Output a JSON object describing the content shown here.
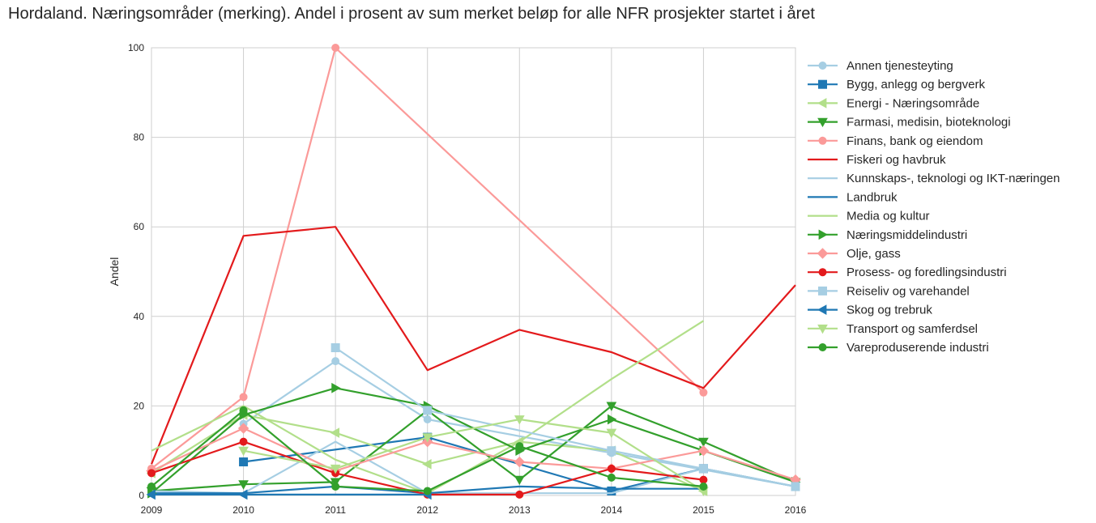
{
  "chart_data": {
    "type": "line",
    "title": "Hordaland. Næringsområder (merking). Andel i prosent av sum merket beløp for alle NFR prosjekter startet i året",
    "xlabel": "",
    "ylabel": "Andel",
    "xlim": [
      2009,
      2016
    ],
    "ylim": [
      0,
      100
    ],
    "xticks": [
      "2009",
      "2010",
      "2011",
      "2012",
      "2013",
      "2014",
      "2015",
      "2016"
    ],
    "yticks": [
      "0",
      "20",
      "40",
      "60",
      "80",
      "100"
    ],
    "grid": true,
    "legend_position": "right",
    "series": [
      {
        "name": "Annen tjenesteyting",
        "color": "#a6cee3",
        "marker": "circle",
        "points": [
          [
            2010,
            16
          ],
          [
            2011,
            30
          ],
          [
            2012,
            17
          ],
          [
            2014,
            9.5
          ],
          [
            2016,
            2
          ]
        ]
      },
      {
        "name": "Bygg, anlegg og bergverk",
        "color": "#1f78b4",
        "marker": "square",
        "points": [
          [
            2010,
            7.5
          ],
          [
            2012,
            13
          ],
          [
            2014,
            1
          ],
          [
            2015,
            6
          ],
          [
            2016,
            2
          ]
        ]
      },
      {
        "name": "Energi - Næringsområde",
        "color": "#b2df8a",
        "marker": "triangle-left",
        "points": [
          [
            2009,
            5
          ],
          [
            2010,
            18
          ],
          [
            2011,
            14
          ],
          [
            2012,
            7
          ],
          [
            2013,
            12
          ],
          [
            2014,
            10
          ],
          [
            2015,
            1
          ]
        ]
      },
      {
        "name": "Farmasi, medisin, bioteknologi",
        "color": "#33a02c",
        "marker": "triangle-down",
        "points": [
          [
            2009,
            1
          ],
          [
            2010,
            2.5
          ],
          [
            2011,
            3
          ],
          [
            2012,
            19
          ],
          [
            2013,
            3.5
          ],
          [
            2014,
            20
          ],
          [
            2015,
            12
          ],
          [
            2016,
            3
          ]
        ]
      },
      {
        "name": "Finans, bank og eiendom",
        "color": "#fb9a99",
        "marker": "circle",
        "points": [
          [
            2009,
            6
          ],
          [
            2010,
            22
          ],
          [
            2011,
            100
          ],
          [
            2015,
            23
          ]
        ]
      },
      {
        "name": "Fiskeri og havbruk",
        "color": "#e31a1c",
        "marker": "none",
        "points": [
          [
            2009,
            7
          ],
          [
            2010,
            58
          ],
          [
            2011,
            60
          ],
          [
            2012,
            28
          ],
          [
            2013,
            37
          ],
          [
            2014,
            32
          ],
          [
            2015,
            24
          ],
          [
            2016,
            47
          ]
        ]
      },
      {
        "name": "Kunnskaps-, teknologi og IKT-næringen",
        "color": "#a6cee3",
        "marker": "none",
        "points": [
          [
            2009,
            1
          ],
          [
            2010,
            0.5
          ],
          [
            2011,
            12
          ],
          [
            2012,
            0.5
          ],
          [
            2013,
            0.5
          ],
          [
            2014,
            0.5
          ],
          [
            2015,
            6
          ],
          [
            2016,
            2
          ]
        ]
      },
      {
        "name": "Landbruk",
        "color": "#1f78b4",
        "marker": "none",
        "points": [
          [
            2009,
            0.5
          ],
          [
            2010,
            0.5
          ],
          [
            2011,
            2
          ],
          [
            2012,
            0.5
          ],
          [
            2013,
            2
          ],
          [
            2014,
            1.5
          ],
          [
            2015,
            1.5
          ]
        ]
      },
      {
        "name": "Media og kultur",
        "color": "#b2df8a",
        "marker": "none",
        "points": [
          [
            2009,
            10
          ],
          [
            2010,
            20
          ],
          [
            2011,
            8
          ],
          [
            2012,
            0.5
          ],
          [
            2013,
            12
          ],
          [
            2014,
            26
          ],
          [
            2015,
            39
          ]
        ]
      },
      {
        "name": "Næringsmiddelindustri",
        "color": "#33a02c",
        "marker": "triangle-right",
        "points": [
          [
            2009,
            0.5
          ],
          [
            2010,
            18
          ],
          [
            2011,
            24
          ],
          [
            2012,
            20
          ],
          [
            2013,
            10
          ],
          [
            2014,
            17
          ],
          [
            2015,
            10
          ],
          [
            2016,
            3
          ]
        ]
      },
      {
        "name": "Olje, gass",
        "color": "#fb9a99",
        "marker": "diamond",
        "points": [
          [
            2009,
            5.5
          ],
          [
            2010,
            15
          ],
          [
            2011,
            5.5
          ],
          [
            2012,
            12
          ],
          [
            2013,
            7.5
          ],
          [
            2014,
            6
          ],
          [
            2015,
            10
          ],
          [
            2016,
            3.5
          ]
        ]
      },
      {
        "name": "Prosess- og foredlingsindustri",
        "color": "#e31a1c",
        "marker": "circle",
        "points": [
          [
            2009,
            5
          ],
          [
            2010,
            12
          ],
          [
            2011,
            5
          ],
          [
            2012,
            0.2
          ],
          [
            2013,
            0.2
          ],
          [
            2014,
            6
          ],
          [
            2015,
            3.5
          ]
        ]
      },
      {
        "name": "Reiseliv og varehandel",
        "color": "#a6cee3",
        "marker": "square",
        "points": [
          [
            2011,
            33
          ],
          [
            2012,
            19
          ],
          [
            2014,
            10
          ],
          [
            2015,
            6
          ],
          [
            2016,
            2
          ]
        ]
      },
      {
        "name": "Skog og trebruk",
        "color": "#1f78b4",
        "marker": "triangle-left",
        "points": [
          [
            2009,
            0.2
          ],
          [
            2010,
            0.2
          ],
          [
            2012,
            0.2
          ]
        ]
      },
      {
        "name": "Transport og samferdsel",
        "color": "#b2df8a",
        "marker": "triangle-down",
        "points": [
          [
            2010,
            10
          ],
          [
            2011,
            6
          ],
          [
            2012,
            13
          ],
          [
            2013,
            17
          ],
          [
            2014,
            14
          ],
          [
            2015,
            1
          ]
        ]
      },
      {
        "name": "Vareproduserende industri",
        "color": "#33a02c",
        "marker": "circle",
        "points": [
          [
            2009,
            2
          ],
          [
            2010,
            19
          ],
          [
            2011,
            2
          ],
          [
            2012,
            1
          ],
          [
            2013,
            11
          ],
          [
            2014,
            4
          ],
          [
            2015,
            2
          ]
        ]
      }
    ]
  }
}
